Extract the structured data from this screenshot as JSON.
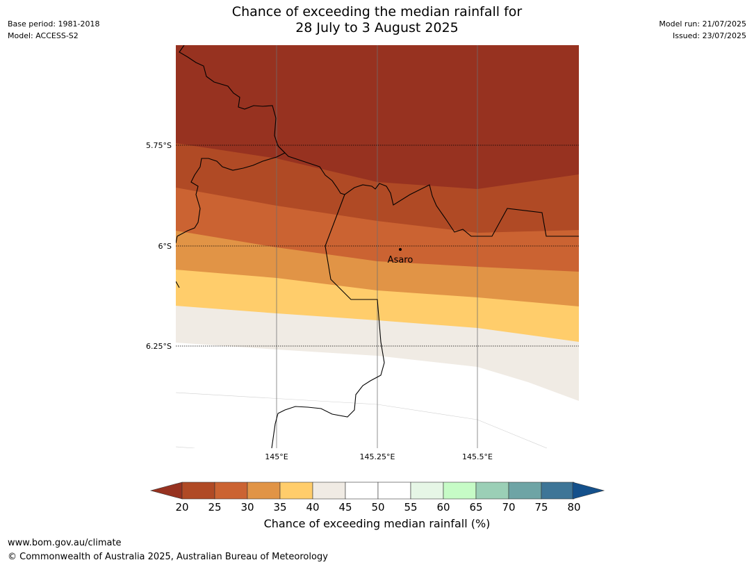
{
  "header": {
    "title_line1": "Chance of exceeding the median rainfall for",
    "title_line2": "28 July to 3 August 2025",
    "base_period": "Base period: 1981-2018",
    "model": "Model: ACCESS-S2",
    "model_run": "Model run: 21/07/2025",
    "issued": "Issued: 23/07/2025"
  },
  "map": {
    "lat_labels": [
      "5.75°S",
      "6°S",
      "6.25°S"
    ],
    "lon_labels": [
      "145°E",
      "145.25°E",
      "145.5°E"
    ],
    "place": {
      "name": "Asaro"
    },
    "band_colors": {
      "lt20": "#973220",
      "20-25": "#b04a25",
      "25-30": "#cb6332",
      "30-35": "#e19446",
      "35-40": "#ffcd6b",
      "40-45": "#f0ebe4",
      "45-55": "#ffffff"
    }
  },
  "colorbar": {
    "title": "Chance of exceeding median rainfall (%)",
    "ticks": [
      "20",
      "25",
      "30",
      "35",
      "40",
      "45",
      "50",
      "55",
      "60",
      "65",
      "70",
      "75",
      "80"
    ],
    "colors": [
      "#b04a25",
      "#cb6332",
      "#e19446",
      "#ffcd6b",
      "#f0ebe4",
      "#ffffff",
      "#ffffff",
      "#e6f6e6",
      "#c6fbc6",
      "#9bcfb6",
      "#6ea4a5",
      "#3e7597"
    ],
    "under_color": "#973220",
    "over_color": "#14508b"
  },
  "footer": {
    "url": "www.bom.gov.au/climate",
    "copyright": "© Commonwealth of Australia 2025, Australian Bureau of Meteorology"
  }
}
